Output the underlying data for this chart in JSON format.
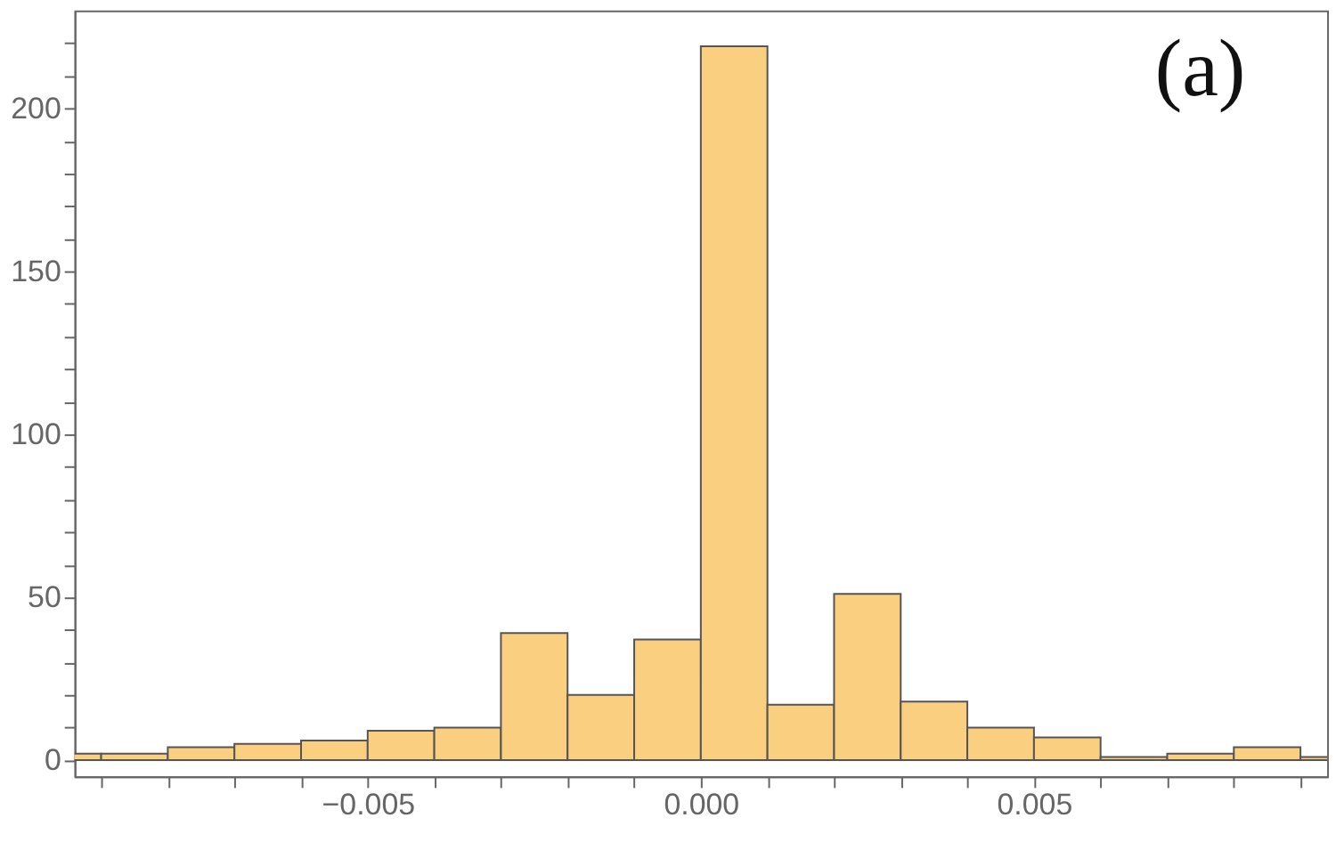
{
  "chart_data": {
    "type": "histogram",
    "color": "#facf80",
    "bins": [
      -0.01,
      -0.009,
      -0.008,
      -0.007,
      -0.006,
      -0.005,
      -0.004,
      -0.003,
      -0.002,
      -0.001,
      0.0,
      0.001,
      0.002,
      0.003,
      0.004,
      0.005,
      0.006,
      0.007,
      0.008,
      0.009,
      0.01
    ],
    "values": [
      2,
      2,
      4,
      5,
      6,
      9,
      10,
      39,
      20,
      37,
      219,
      17,
      51,
      18,
      10,
      7,
      1,
      2,
      4,
      1
    ],
    "xlim": [
      -0.0094,
      0.0094
    ],
    "ylim": [
      -5,
      230
    ],
    "xticks": [
      {
        "value": -0.009,
        "label": null
      },
      {
        "value": -0.008,
        "label": null
      },
      {
        "value": -0.007,
        "label": null
      },
      {
        "value": -0.006,
        "label": null
      },
      {
        "value": -0.005,
        "label": "−0.005"
      },
      {
        "value": -0.004,
        "label": null
      },
      {
        "value": -0.003,
        "label": null
      },
      {
        "value": -0.002,
        "label": null
      },
      {
        "value": -0.001,
        "label": null
      },
      {
        "value": 0.0,
        "label": "0.000"
      },
      {
        "value": 0.001,
        "label": null
      },
      {
        "value": 0.002,
        "label": null
      },
      {
        "value": 0.003,
        "label": null
      },
      {
        "value": 0.004,
        "label": null
      },
      {
        "value": 0.005,
        "label": "0.005"
      },
      {
        "value": 0.006,
        "label": null
      },
      {
        "value": 0.007,
        "label": null
      },
      {
        "value": 0.008,
        "label": null
      },
      {
        "value": 0.009,
        "label": null
      }
    ],
    "yticks": [
      0,
      {
        "value": 10,
        "label": null
      },
      {
        "value": 20,
        "label": null
      },
      {
        "value": 30,
        "label": null
      },
      {
        "value": 40,
        "label": null
      },
      50,
      {
        "value": 60,
        "label": null
      },
      {
        "value": 70,
        "label": null
      },
      {
        "value": 80,
        "label": null
      },
      {
        "value": 90,
        "label": null
      },
      100,
      {
        "value": 110,
        "label": null
      },
      {
        "value": 120,
        "label": null
      },
      {
        "value": 130,
        "label": null
      },
      {
        "value": 140,
        "label": null
      },
      150,
      {
        "value": 160,
        "label": null
      },
      {
        "value": 170,
        "label": null
      },
      {
        "value": 180,
        "label": null
      },
      {
        "value": 190,
        "label": null
      },
      200,
      {
        "value": 210,
        "label": null
      },
      {
        "value": 220,
        "label": null
      }
    ],
    "annotations": [
      "(a)"
    ],
    "grid": false
  }
}
